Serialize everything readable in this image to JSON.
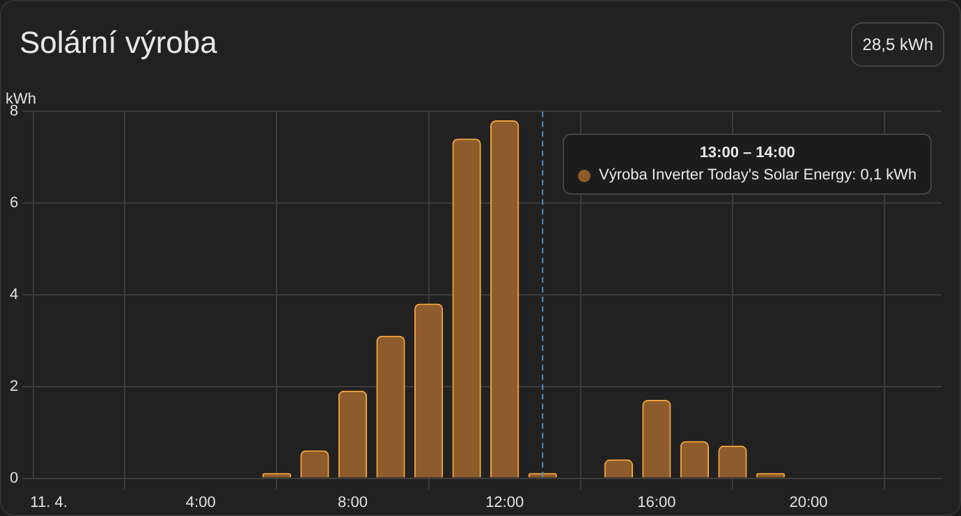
{
  "chart_data": {
    "type": "bar",
    "title": "Solární výroba",
    "ylabel": "kWh",
    "annotations": [
      "28,5 kWh",
      "13:00 – 14:00",
      "Výroba Inverter Today's Solar Energy: 0,1 kWh"
    ],
    "x": [
      6,
      7,
      8,
      9,
      10,
      11,
      12,
      13,
      15,
      16,
      17,
      18,
      19
    ],
    "series": [
      {
        "color": "#8d5b2c",
        "values": [
          0.1,
          0.6,
          1.9,
          3.1,
          3.8,
          7.4,
          7.8,
          0.1,
          0.4,
          1.7,
          0.8,
          0.7,
          0.1
        ]
      }
    ],
    "xlim": [
      -0.4,
      23.5
    ],
    "xticks": [
      {
        "value": 0,
        "label": "11. 4."
      },
      {
        "value": 4,
        "label": "4:00"
      },
      {
        "value": 8,
        "label": "8:00"
      },
      {
        "value": 12,
        "label": "12:00"
      },
      {
        "value": 16,
        "label": "16:00"
      },
      {
        "value": 20,
        "label": "20:00"
      }
    ],
    "ylim": [
      0,
      8
    ],
    "yticks": [
      0,
      2,
      4,
      6,
      8
    ],
    "ref_lines": [
      {
        "axis": "x",
        "value": 13,
        "color": "#4a90c8",
        "line_style": "dashed"
      }
    ],
    "grid": true,
    "legend": false
  }
}
